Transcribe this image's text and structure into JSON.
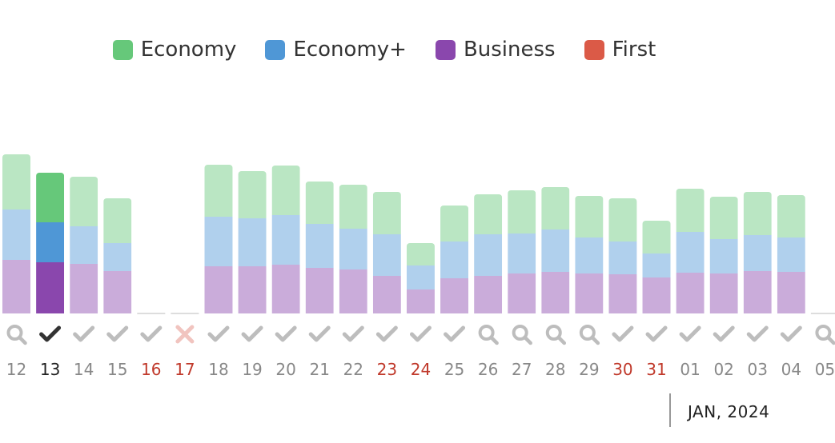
{
  "legend": [
    {
      "label": "Economy",
      "color": "#66c87a"
    },
    {
      "label": "Economy+",
      "color": "#4f97d6"
    },
    {
      "label": "Business",
      "color": "#8a47ad"
    },
    {
      "label": "First",
      "color": "#db5a47"
    }
  ],
  "month_label": "JAN, 2024",
  "chart_data": {
    "type": "bar",
    "stacked": true,
    "grid": false,
    "legend_position": "top-center",
    "highlight_color": "#c0392b",
    "categories": [
      "12",
      "13",
      "14",
      "15",
      "16",
      "17",
      "18",
      "19",
      "20",
      "21",
      "22",
      "23",
      "24",
      "25",
      "26",
      "27",
      "28",
      "29",
      "30",
      "31",
      "01",
      "02",
      "03",
      "04",
      "05"
    ],
    "selected_category": "13",
    "highlighted_categories": [
      "16",
      "17",
      "23",
      "24",
      "30",
      "31"
    ],
    "status_icons": [
      "search-icon",
      "check-icon",
      "check-icon",
      "check-icon",
      "check-icon",
      "cross-icon",
      "check-icon",
      "check-icon",
      "check-icon",
      "check-icon",
      "check-icon",
      "check-icon",
      "check-icon",
      "check-icon",
      "search-icon",
      "search-icon",
      "search-icon",
      "search-icon",
      "check-icon",
      "check-icon",
      "check-icon",
      "check-icon",
      "check-icon",
      "check-icon",
      "search-icon"
    ],
    "series": [
      {
        "name": "Business",
        "color": "#8a47ad",
        "values": [
          67,
          64,
          62,
          53,
          0,
          0,
          59,
          59,
          61,
          57,
          55,
          47,
          30,
          44,
          47,
          50,
          52,
          50,
          49,
          45,
          51,
          50,
          53,
          52,
          0
        ]
      },
      {
        "name": "Economy+",
        "color": "#4f97d6",
        "values": [
          63,
          50,
          47,
          35,
          0,
          0,
          62,
          60,
          62,
          55,
          51,
          52,
          30,
          46,
          52,
          50,
          53,
          45,
          41,
          30,
          51,
          43,
          45,
          43,
          0
        ]
      },
      {
        "name": "Economy",
        "color": "#66c87a",
        "values": [
          69,
          62,
          62,
          56,
          0,
          0,
          65,
          59,
          62,
          53,
          55,
          53,
          28,
          45,
          50,
          54,
          53,
          52,
          54,
          41,
          54,
          53,
          54,
          53,
          0
        ]
      },
      {
        "name": "First",
        "color": "#db5a47",
        "values": [
          0,
          0,
          0,
          0,
          0,
          0,
          0,
          0,
          0,
          0,
          0,
          0,
          0,
          0,
          0,
          0,
          0,
          0,
          0,
          0,
          0,
          0,
          0,
          0,
          0
        ]
      }
    ],
    "ylim": [
      0,
      200
    ]
  }
}
